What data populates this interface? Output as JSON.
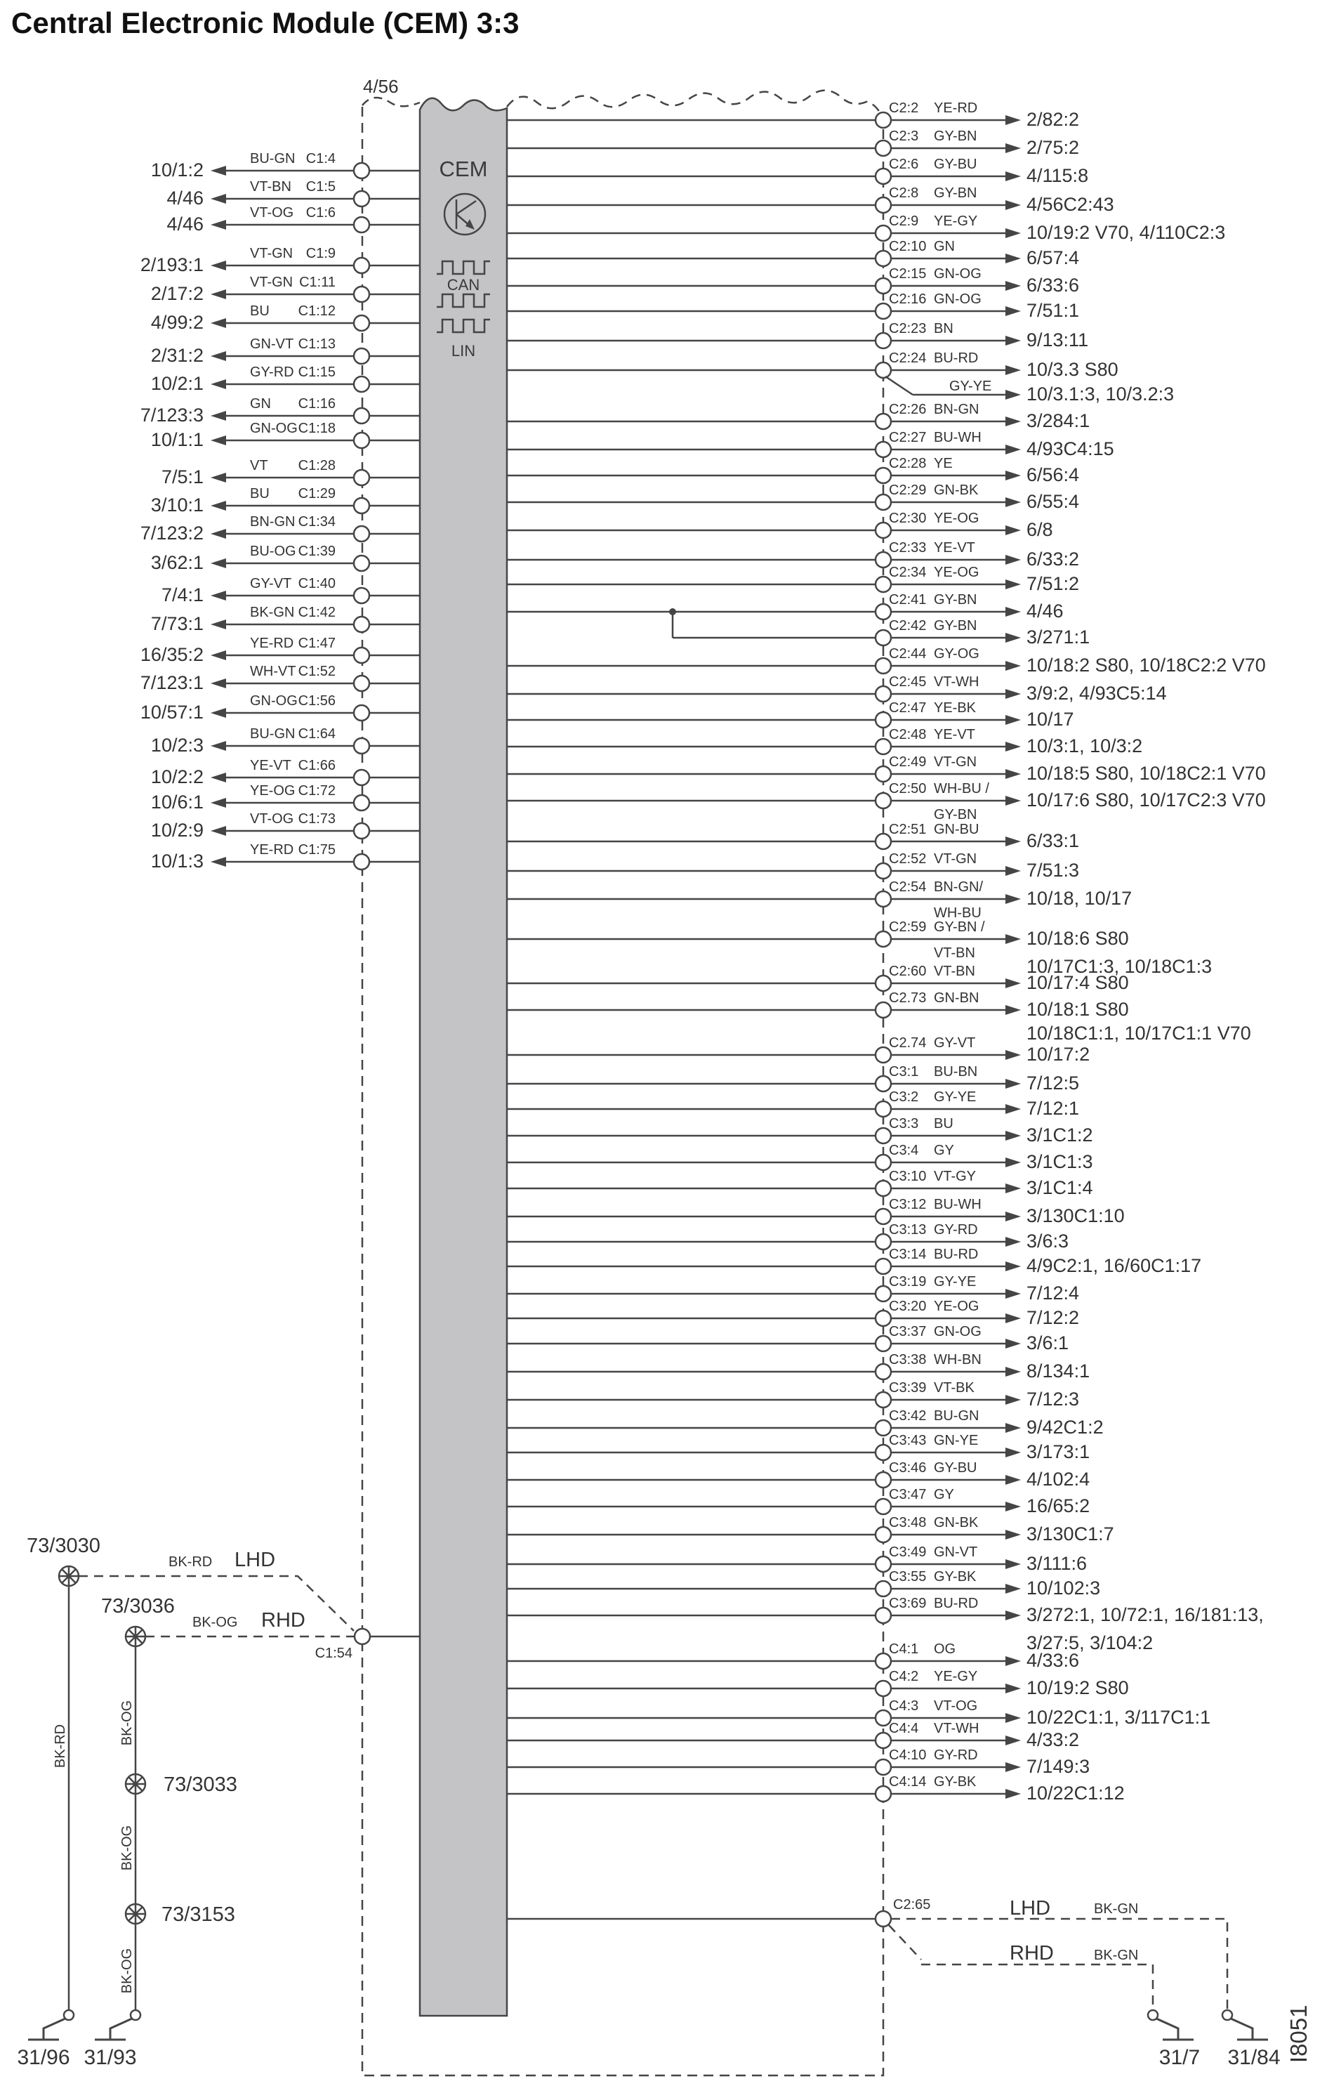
{
  "title": "Central Electronic Module (CEM) 3:3",
  "module": {
    "name": "CEM",
    "top_connector": "4/56",
    "bus1": "CAN",
    "bus2": "LIN"
  },
  "left_pins": [
    {
      "dest": "10/1:2",
      "color": "BU-GN",
      "pin": "C1:4"
    },
    {
      "dest": "4/46",
      "color": "VT-BN",
      "pin": "C1:5"
    },
    {
      "dest": "4/46",
      "color": "VT-OG",
      "pin": "C1:6"
    },
    {
      "dest": "2/193:1",
      "color": "VT-GN",
      "pin": "C1:9"
    },
    {
      "dest": "2/17:2",
      "color": "VT-GN",
      "pin": "C1:11"
    },
    {
      "dest": "4/99:2",
      "color": "BU",
      "pin": "C1:12"
    },
    {
      "dest": "2/31:2",
      "color": "GN-VT",
      "pin": "C1:13"
    },
    {
      "dest": "10/2:1",
      "color": "GY-RD",
      "pin": "C1:15"
    },
    {
      "dest": "7/123:3",
      "color": "GN",
      "pin": "C1:16"
    },
    {
      "dest": "10/1:1",
      "color": "GN-OG",
      "pin": "C1:18"
    },
    {
      "dest": "7/5:1",
      "color": "VT",
      "pin": "C1:28"
    },
    {
      "dest": "3/10:1",
      "color": "BU",
      "pin": "C1:29"
    },
    {
      "dest": "7/123:2",
      "color": "BN-GN",
      "pin": "C1:34"
    },
    {
      "dest": "3/62:1",
      "color": "BU-OG",
      "pin": "C1:39"
    },
    {
      "dest": "7/4:1",
      "color": "GY-VT",
      "pin": "C1:40"
    },
    {
      "dest": "7/73:1",
      "color": "BK-GN",
      "pin": "C1:42"
    },
    {
      "dest": "16/35:2",
      "color": "YE-RD",
      "pin": "C1:47"
    },
    {
      "dest": "7/123:1",
      "color": "WH-VT",
      "pin": "C1:52"
    },
    {
      "dest": "10/57:1",
      "color": "GN-OG",
      "pin": "C1:56"
    },
    {
      "dest": "10/2:3",
      "color": "BU-GN",
      "pin": "C1:64"
    },
    {
      "dest": "10/2:2",
      "color": "YE-VT",
      "pin": "C1:66"
    },
    {
      "dest": "10/6:1",
      "color": "YE-OG",
      "pin": "C1:72"
    },
    {
      "dest": "10/2:9",
      "color": "VT-OG",
      "pin": "C1:73"
    },
    {
      "dest": "10/1:3",
      "color": "YE-RD",
      "pin": "C1:75"
    }
  ],
  "right_pins": [
    {
      "pin": "C2:2",
      "color": "YE-RD",
      "dest": "2/82:2"
    },
    {
      "pin": "C2:3",
      "color": "GY-BN",
      "dest": "2/75:2"
    },
    {
      "pin": "C2:6",
      "color": "GY-BU",
      "dest": "4/115:8"
    },
    {
      "pin": "C2:8",
      "color": "GY-BN",
      "dest": "4/56C2:43"
    },
    {
      "pin": "C2:9",
      "color": "YE-GY",
      "dest": "10/19:2 V70, 4/110C2:3"
    },
    {
      "pin": "C2:10",
      "color": "GN",
      "dest": "6/57:4"
    },
    {
      "pin": "C2:15",
      "color": "GN-OG",
      "dest": "6/33:6"
    },
    {
      "pin": "C2:16",
      "color": "GN-OG",
      "dest": "7/51:1"
    },
    {
      "pin": "C2:23",
      "color": "BN",
      "dest": "9/13:11"
    },
    {
      "pin": "C2:24",
      "color": "BU-RD",
      "dest": "10/3.3 S80"
    },
    {
      "pin": "C2:26",
      "color": "BN-GN",
      "dest": "3/284:1"
    },
    {
      "pin": "C2:27",
      "color": "BU-WH",
      "dest": "4/93C4:15"
    },
    {
      "pin": "C2:28",
      "color": "YE",
      "dest": "6/56:4"
    },
    {
      "pin": "C2:29",
      "color": "GN-BK",
      "dest": "6/55:4"
    },
    {
      "pin": "C2:30",
      "color": "YE-OG",
      "dest": "6/8"
    },
    {
      "pin": "C2:33",
      "color": "YE-VT",
      "dest": "6/33:2"
    },
    {
      "pin": "C2:34",
      "color": "YE-OG",
      "dest": "7/51:2"
    },
    {
      "pin": "C2:41",
      "color": "GY-BN",
      "dest": "4/46"
    },
    {
      "pin": "C2:42",
      "color": "GY-BN",
      "dest": "3/271:1"
    },
    {
      "pin": "C2:44",
      "color": "GY-OG",
      "dest": "10/18:2 S80, 10/18C2:2 V70"
    },
    {
      "pin": "C2:45",
      "color": "VT-WH",
      "dest": "3/9:2, 4/93C5:14"
    },
    {
      "pin": "C2:47",
      "color": "YE-BK",
      "dest": "10/17"
    },
    {
      "pin": "C2:48",
      "color": "YE-VT",
      "dest": "10/3:1, 10/3:2"
    },
    {
      "pin": "C2:49",
      "color": "VT-GN",
      "dest": "10/18:5 S80, 10/18C2:1 V70"
    },
    {
      "pin": "C2:50",
      "color": "WH-BU /",
      "color2": "GY-BN",
      "dest": "10/17:6 S80, 10/17C2:3 V70"
    },
    {
      "pin": "C2:51",
      "color": "GN-BU",
      "dest": "6/33:1"
    },
    {
      "pin": "C2:52",
      "color": "VT-GN",
      "dest": "7/51:3"
    },
    {
      "pin": "C2:54",
      "color": "BN-GN/",
      "color2": "WH-BU",
      "dest": "10/18, 10/17"
    },
    {
      "pin": "C2:59",
      "color": "GY-BN /",
      "color2": "VT-BN",
      "dest": "10/18:6 S80",
      "dest_below": "10/17C1:3, 10/18C1:3"
    },
    {
      "pin": "C2:60",
      "color": "VT-BN",
      "dest": "10/17:4 S80"
    },
    {
      "pin": "C2.73",
      "color": "GN-BN",
      "dest": "10/18:1 S80"
    },
    {
      "pin": "C2.74",
      "color": "GY-VT",
      "dest_above": "10/18C1:1, 10/17C1:1 V70",
      "dest": "10/17:2"
    },
    {
      "pin": "C3:1",
      "color": "BU-BN",
      "dest": "7/12:5"
    },
    {
      "pin": "C3:2",
      "color": "GY-YE",
      "dest": "7/12:1"
    },
    {
      "pin": "C3:3",
      "color": "BU",
      "dest": "3/1C1:2"
    },
    {
      "pin": "C3:4",
      "color": "GY",
      "dest": "3/1C1:3"
    },
    {
      "pin": "C3:10",
      "color": "VT-GY",
      "dest": "3/1C1:4"
    },
    {
      "pin": "C3:12",
      "color": "BU-WH",
      "dest": "3/130C1:10"
    },
    {
      "pin": "C3:13",
      "color": "GY-RD",
      "dest": "3/6:3"
    },
    {
      "pin": "C3:14",
      "color": "BU-RD",
      "dest": "4/9C2:1, 16/60C1:17"
    },
    {
      "pin": "C3:19",
      "color": "GY-YE",
      "dest": "7/12:4"
    },
    {
      "pin": "C3:20",
      "color": "YE-OG",
      "dest": "7/12:2"
    },
    {
      "pin": "C3:37",
      "color": "GN-OG",
      "dest": "3/6:1"
    },
    {
      "pin": "C3:38",
      "color": "WH-BN",
      "dest": "8/134:1"
    },
    {
      "pin": "C3:39",
      "color": "VT-BK",
      "dest": "7/12:3"
    },
    {
      "pin": "C3:42",
      "color": "BU-GN",
      "dest": "9/42C1:2"
    },
    {
      "pin": "C3:43",
      "color": "GN-YE",
      "dest": "3/173:1"
    },
    {
      "pin": "C3:46",
      "color": "GY-BU",
      "dest": "4/102:4"
    },
    {
      "pin": "C3:47",
      "color": "GY",
      "dest": "16/65:2"
    },
    {
      "pin": "C3:48",
      "color": "GN-BK",
      "dest": "3/130C1:7"
    },
    {
      "pin": "C3:49",
      "color": "GN-VT",
      "dest": "3/111:6"
    },
    {
      "pin": "C3:55",
      "color": "GY-BK",
      "dest": "10/102:3"
    },
    {
      "pin": "C3:69",
      "color": "BU-RD",
      "dest": "3/272:1, 10/72:1, 16/181:13,",
      "dest_below": "3/27:5, 3/104:2"
    },
    {
      "pin": "C4:1",
      "color": "OG",
      "dest": "4/33:6"
    },
    {
      "pin": "C4:2",
      "color": "YE-GY",
      "dest": "10/19:2 S80"
    },
    {
      "pin": "C4:3",
      "color": "VT-OG",
      "dest": "10/22C1:1, 3/117C1:1"
    },
    {
      "pin": "C4:4",
      "color": "VT-WH",
      "dest": "4/33:2"
    },
    {
      "pin": "C4:10",
      "color": "GY-RD",
      "dest": "7/149:3"
    },
    {
      "pin": "C4:14",
      "color": "GY-BK",
      "dest": "10/22C1:12"
    }
  ],
  "right_branch": {
    "from_pin": "C2:24",
    "color": "GY-YE",
    "dest": "10/3.1:3, 10/3.2:3"
  },
  "bottom_left": {
    "splice1": "73/3030",
    "splice1_wire": "BK-RD",
    "splice1_variant": "LHD",
    "splice2": "73/3036",
    "splice2_wire": "BK-OG",
    "splice2_variant": "RHD",
    "splice3": "73/3033",
    "splice4": "73/3153",
    "riser1_wire": "BK-RD",
    "riser2_wire_a": "BK-OG",
    "riser2_wire_b": "BK-OG",
    "riser2_wire_c": "BK-OG",
    "module_pin": "C1:54",
    "ground1": "31/96",
    "ground2": "31/93"
  },
  "bottom_right": {
    "module_pin": "C2:65",
    "lhd_label": "LHD",
    "lhd_wire": "BK-GN",
    "rhd_label": "RHD",
    "rhd_wire": "BK-GN",
    "ground_rhd": "31/7",
    "ground_lhd": "31/84"
  },
  "figure_id": "I8051"
}
